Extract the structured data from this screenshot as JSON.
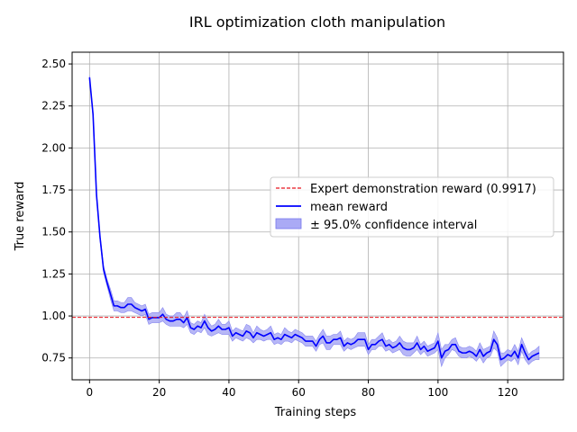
{
  "chart_data": {
    "type": "line",
    "title": "IRL optimization cloth manipulation",
    "xlabel": "Training steps",
    "ylabel": "True reward",
    "xlim": [
      -5,
      136
    ],
    "ylim": [
      0.62,
      2.57
    ],
    "xticks": [
      0,
      20,
      40,
      60,
      80,
      100,
      120
    ],
    "xtick_labels": [
      "0",
      "20",
      "40",
      "60",
      "80",
      "100",
      "120"
    ],
    "yticks": [
      0.75,
      1.0,
      1.25,
      1.5,
      1.75,
      2.0,
      2.25,
      2.5
    ],
    "ytick_labels": [
      "0.75",
      "1.00",
      "1.25",
      "1.50",
      "1.75",
      "2.00",
      "2.25",
      "2.50"
    ],
    "grid": true,
    "legend_placement": "center-right",
    "colors": {
      "mean": "#0000ff",
      "band": "#aaaaf5",
      "expert": "#e8141e"
    },
    "expert_reward": 0.9917,
    "series": [
      {
        "name": "Expert demonstration reward (0.9917)",
        "kind": "hline",
        "style": "dashed",
        "y": 0.9917
      },
      {
        "name": "mean reward",
        "kind": "line",
        "x": [
          0,
          1,
          2,
          3,
          4,
          5,
          6,
          7,
          8,
          9,
          10,
          11,
          12,
          13,
          14,
          15,
          16,
          17,
          18,
          19,
          20,
          21,
          22,
          23,
          24,
          25,
          26,
          27,
          28,
          29,
          30,
          31,
          32,
          33,
          34,
          35,
          36,
          37,
          38,
          39,
          40,
          41,
          42,
          43,
          44,
          45,
          46,
          47,
          48,
          49,
          50,
          51,
          52,
          53,
          54,
          55,
          56,
          57,
          58,
          59,
          60,
          61,
          62,
          63,
          64,
          65,
          66,
          67,
          68,
          69,
          70,
          71,
          72,
          73,
          74,
          75,
          76,
          77,
          78,
          79,
          80,
          81,
          82,
          83,
          84,
          85,
          86,
          87,
          88,
          89,
          90,
          91,
          92,
          93,
          94,
          95,
          96,
          97,
          98,
          99,
          100,
          101,
          102,
          103,
          104,
          105,
          106,
          107,
          108,
          109,
          110,
          111,
          112,
          113,
          114,
          115,
          116,
          117,
          118,
          119,
          120,
          121,
          122,
          123,
          124,
          125,
          126,
          127,
          128,
          129
        ],
        "values": [
          2.42,
          2.2,
          1.72,
          1.47,
          1.28,
          1.2,
          1.13,
          1.06,
          1.06,
          1.05,
          1.05,
          1.07,
          1.07,
          1.05,
          1.04,
          1.03,
          1.04,
          0.98,
          0.99,
          0.99,
          0.99,
          1.01,
          0.98,
          0.97,
          0.97,
          0.98,
          0.98,
          0.96,
          0.99,
          0.93,
          0.92,
          0.94,
          0.93,
          0.97,
          0.93,
          0.91,
          0.92,
          0.94,
          0.92,
          0.92,
          0.93,
          0.88,
          0.9,
          0.89,
          0.88,
          0.91,
          0.9,
          0.87,
          0.9,
          0.89,
          0.88,
          0.89,
          0.9,
          0.86,
          0.87,
          0.86,
          0.89,
          0.88,
          0.87,
          0.89,
          0.88,
          0.87,
          0.85,
          0.85,
          0.85,
          0.82,
          0.86,
          0.88,
          0.84,
          0.84,
          0.86,
          0.86,
          0.87,
          0.82,
          0.84,
          0.83,
          0.84,
          0.86,
          0.86,
          0.86,
          0.8,
          0.83,
          0.83,
          0.85,
          0.86,
          0.82,
          0.83,
          0.81,
          0.82,
          0.84,
          0.81,
          0.8,
          0.8,
          0.81,
          0.84,
          0.8,
          0.82,
          0.79,
          0.8,
          0.81,
          0.85,
          0.75,
          0.79,
          0.8,
          0.83,
          0.83,
          0.79,
          0.78,
          0.78,
          0.79,
          0.78,
          0.76,
          0.8,
          0.76,
          0.78,
          0.79,
          0.86,
          0.83,
          0.74,
          0.75,
          0.77,
          0.76,
          0.79,
          0.75,
          0.83,
          0.78,
          0.74,
          0.76,
          0.77,
          0.78
        ]
      },
      {
        "name": "± 95.0% confidence interval",
        "kind": "band",
        "half_width": [
          0.01,
          0.02,
          0.02,
          0.02,
          0.02,
          0.02,
          0.03,
          0.03,
          0.03,
          0.03,
          0.03,
          0.04,
          0.04,
          0.03,
          0.03,
          0.03,
          0.03,
          0.03,
          0.03,
          0.03,
          0.03,
          0.04,
          0.03,
          0.03,
          0.03,
          0.04,
          0.04,
          0.03,
          0.04,
          0.03,
          0.03,
          0.03,
          0.03,
          0.04,
          0.04,
          0.03,
          0.03,
          0.04,
          0.03,
          0.03,
          0.04,
          0.03,
          0.03,
          0.03,
          0.03,
          0.04,
          0.04,
          0.03,
          0.04,
          0.03,
          0.03,
          0.03,
          0.04,
          0.03,
          0.03,
          0.03,
          0.04,
          0.03,
          0.03,
          0.03,
          0.03,
          0.03,
          0.03,
          0.03,
          0.03,
          0.03,
          0.03,
          0.04,
          0.04,
          0.04,
          0.03,
          0.03,
          0.04,
          0.03,
          0.03,
          0.03,
          0.03,
          0.04,
          0.04,
          0.04,
          0.03,
          0.03,
          0.03,
          0.03,
          0.04,
          0.03,
          0.03,
          0.03,
          0.03,
          0.04,
          0.04,
          0.04,
          0.04,
          0.03,
          0.04,
          0.03,
          0.03,
          0.03,
          0.03,
          0.03,
          0.05,
          0.05,
          0.04,
          0.03,
          0.03,
          0.04,
          0.03,
          0.03,
          0.03,
          0.03,
          0.03,
          0.03,
          0.04,
          0.04,
          0.03,
          0.03,
          0.05,
          0.04,
          0.04,
          0.03,
          0.03,
          0.03,
          0.04,
          0.04,
          0.04,
          0.04,
          0.03,
          0.03,
          0.03,
          0.04
        ]
      }
    ]
  }
}
